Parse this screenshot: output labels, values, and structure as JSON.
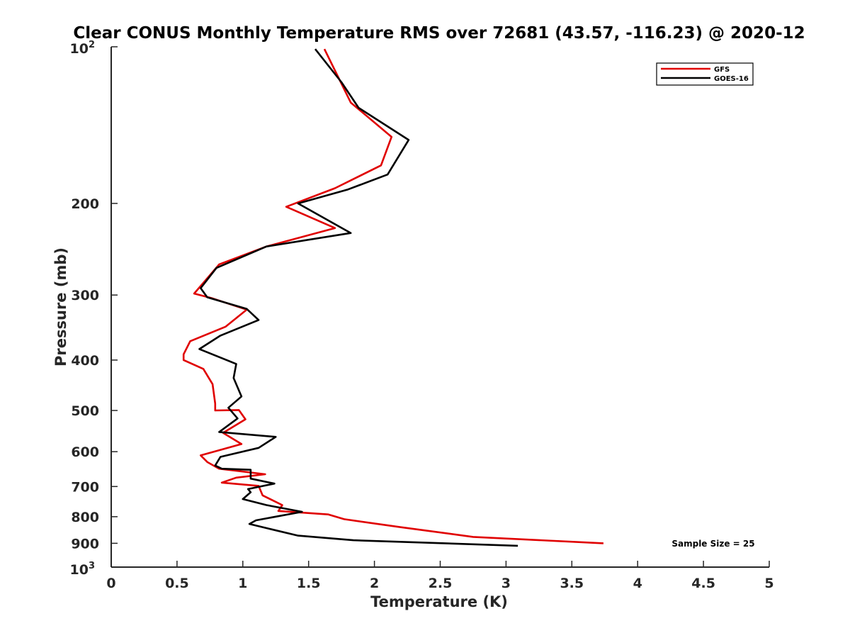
{
  "chart_data": {
    "type": "line",
    "title": "Clear CONUS Monthly Temperature RMS over 72681 (43.57, -116.23) @ 2020-12",
    "xlabel": "Temperature (K)",
    "ylabel": "Pressure (mb)",
    "xlim": [
      0,
      5
    ],
    "ylim": [
      100,
      1000
    ],
    "yscale": "log",
    "y_reversed": true,
    "x_ticks": [
      0,
      0.5,
      1,
      1.5,
      2,
      2.5,
      3,
      3.5,
      4,
      4.5,
      5
    ],
    "x_tick_labels": [
      "0",
      "0.5",
      "1",
      "1.5",
      "2",
      "2.5",
      "3",
      "3.5",
      "4",
      "4.5",
      "5"
    ],
    "y_ticks": [
      200,
      300,
      400,
      500,
      600,
      700,
      800,
      900
    ],
    "y_tick_labels": [
      "200",
      "300",
      "400",
      "500",
      "600",
      "700",
      "800",
      "900"
    ],
    "y_top_label": {
      "base": "10",
      "exp": "2"
    },
    "y_bottom_label": {
      "base": "10",
      "exp": "3"
    },
    "legend_position": "top-right",
    "annotation": "Sample Size = 25",
    "series": [
      {
        "name": "GFS",
        "color": "#e00000",
        "x": [
          1.62,
          1.82,
          2.13,
          2.05,
          1.7,
          1.33,
          1.7,
          1.18,
          0.82,
          0.63,
          0.76,
          1.03,
          0.87,
          0.6,
          0.55,
          0.55,
          0.7,
          0.77,
          0.79,
          0.79,
          0.97,
          1.02,
          0.85,
          0.99,
          0.68,
          0.73,
          0.82,
          1.17,
          0.95,
          0.84,
          1.12,
          1.15,
          1.3,
          1.27,
          1.65,
          1.77,
          2.2,
          2.75,
          3.74
        ],
        "y": [
          101,
          128,
          149,
          169,
          187,
          203,
          223,
          242,
          262,
          298,
          304,
          320,
          345,
          368,
          390,
          400,
          416,
          445,
          485,
          500,
          499,
          520,
          552,
          580,
          610,
          628,
          647,
          663,
          673,
          688,
          698,
          728,
          760,
          780,
          792,
          809,
          838,
          875,
          900
        ]
      },
      {
        "name": "GOES-16",
        "color": "#000000",
        "x": [
          1.55,
          1.75,
          1.88,
          2.26,
          2.1,
          1.8,
          1.42,
          1.82,
          1.18,
          0.8,
          0.68,
          0.73,
          1.03,
          1.12,
          0.83,
          0.67,
          0.95,
          0.93,
          0.99,
          0.89,
          0.96,
          0.82,
          1.25,
          1.12,
          0.83,
          0.79,
          0.84,
          1.06,
          1.06,
          1.24,
          1.04,
          1.06,
          1.0,
          1.18,
          1.45,
          1.1,
          1.05,
          1.2,
          1.42,
          1.84,
          3.09
        ],
        "y": [
          101,
          117,
          131,
          151,
          176,
          188,
          200,
          228,
          242,
          266,
          291,
          303,
          319,
          335,
          359,
          381,
          407,
          433,
          470,
          494,
          518,
          550,
          562,
          590,
          614,
          638,
          647,
          650,
          676,
          691,
          708,
          718,
          740,
          760,
          783,
          813,
          826,
          844,
          870,
          888,
          910
        ]
      }
    ]
  }
}
